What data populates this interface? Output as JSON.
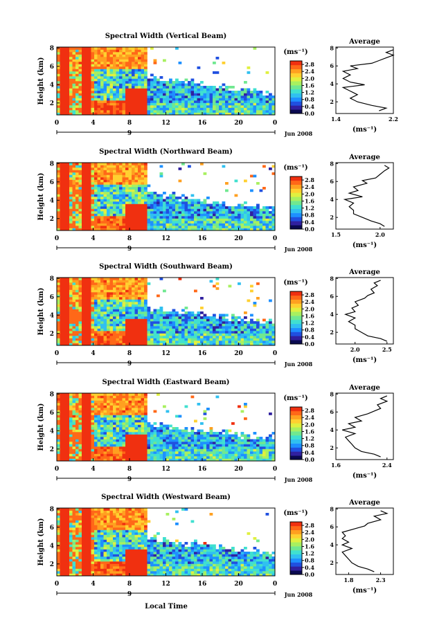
{
  "chart_data": {
    "type": "heatmap",
    "panels": [
      {
        "title": "Spectral Width (Vertical Beam)",
        "avg_xticks": [
          "1.4",
          "2.2"
        ],
        "avg_xlim": [
          1.4,
          2.2
        ],
        "profile": [
          [
            2.0,
            1.0
          ],
          [
            2.1,
            1.3
          ],
          [
            1.9,
            1.6
          ],
          [
            1.7,
            2.0
          ],
          [
            1.6,
            2.4
          ],
          [
            1.7,
            2.8
          ],
          [
            1.6,
            3.2
          ],
          [
            1.5,
            3.6
          ],
          [
            1.8,
            3.9
          ],
          [
            1.6,
            4.2
          ],
          [
            1.5,
            4.6
          ],
          [
            1.6,
            5.0
          ],
          [
            1.5,
            5.4
          ],
          [
            1.7,
            5.7
          ],
          [
            1.6,
            6.0
          ],
          [
            1.9,
            6.3
          ],
          [
            2.0,
            6.6
          ],
          [
            2.1,
            6.9
          ],
          [
            2.2,
            7.2
          ],
          [
            2.1,
            7.5
          ],
          [
            2.2,
            7.8
          ]
        ]
      },
      {
        "title": "Spectral Width (Northward Beam)",
        "avg_xticks": [
          "1.5",
          "2.0"
        ],
        "avg_xlim": [
          1.5,
          2.15
        ],
        "profile": [
          [
            2.05,
            1.0
          ],
          [
            2.0,
            1.3
          ],
          [
            1.9,
            1.6
          ],
          [
            1.8,
            2.0
          ],
          [
            1.7,
            2.4
          ],
          [
            1.7,
            2.8
          ],
          [
            1.65,
            3.2
          ],
          [
            1.7,
            3.6
          ],
          [
            1.6,
            4.0
          ],
          [
            1.8,
            4.3
          ],
          [
            1.65,
            4.7
          ],
          [
            1.75,
            5.0
          ],
          [
            1.7,
            5.4
          ],
          [
            1.85,
            5.8
          ],
          [
            1.8,
            6.1
          ],
          [
            1.95,
            6.4
          ],
          [
            2.0,
            6.8
          ],
          [
            2.05,
            7.2
          ],
          [
            2.1,
            7.5
          ],
          [
            2.05,
            7.8
          ]
        ]
      },
      {
        "title": "Spectral Width (Southward Beam)",
        "avg_xticks": [
          "2.0",
          "2.5"
        ],
        "avg_xlim": [
          1.7,
          2.6
        ],
        "profile": [
          [
            2.5,
            1.0
          ],
          [
            2.4,
            1.3
          ],
          [
            2.2,
            1.6
          ],
          [
            2.1,
            2.0
          ],
          [
            2.0,
            2.4
          ],
          [
            2.0,
            2.8
          ],
          [
            1.9,
            3.2
          ],
          [
            2.0,
            3.6
          ],
          [
            1.85,
            4.0
          ],
          [
            2.0,
            4.3
          ],
          [
            1.95,
            4.7
          ],
          [
            2.05,
            5.0
          ],
          [
            2.0,
            5.4
          ],
          [
            2.15,
            5.8
          ],
          [
            2.2,
            6.1
          ],
          [
            2.3,
            6.4
          ],
          [
            2.25,
            6.8
          ],
          [
            2.35,
            7.2
          ],
          [
            2.3,
            7.5
          ],
          [
            2.4,
            7.8
          ]
        ]
      },
      {
        "title": "Spectral Width (Eastward Beam)",
        "avg_xticks": [
          "1.6",
          "2.4"
        ],
        "avg_xlim": [
          1.6,
          2.5
        ],
        "profile": [
          [
            2.3,
            1.0
          ],
          [
            2.2,
            1.3
          ],
          [
            2.0,
            1.6
          ],
          [
            1.9,
            2.0
          ],
          [
            1.85,
            2.4
          ],
          [
            1.8,
            2.8
          ],
          [
            1.75,
            3.2
          ],
          [
            1.9,
            3.6
          ],
          [
            1.7,
            4.0
          ],
          [
            1.9,
            4.3
          ],
          [
            1.8,
            4.7
          ],
          [
            2.0,
            5.0
          ],
          [
            1.9,
            5.4
          ],
          [
            2.1,
            5.8
          ],
          [
            2.2,
            6.1
          ],
          [
            2.3,
            6.4
          ],
          [
            2.25,
            6.8
          ],
          [
            2.4,
            7.2
          ],
          [
            2.3,
            7.5
          ],
          [
            2.4,
            7.8
          ]
        ]
      },
      {
        "title": "Spectral Width (Westward Beam)",
        "avg_xticks": [
          "1.8",
          "2.3"
        ],
        "avg_xlim": [
          1.6,
          2.5
        ],
        "profile": [
          [
            2.2,
            1.0
          ],
          [
            2.1,
            1.3
          ],
          [
            1.95,
            1.6
          ],
          [
            1.85,
            2.0
          ],
          [
            1.8,
            2.4
          ],
          [
            1.75,
            2.8
          ],
          [
            1.7,
            3.2
          ],
          [
            1.85,
            3.6
          ],
          [
            1.7,
            4.0
          ],
          [
            1.8,
            4.3
          ],
          [
            1.7,
            4.7
          ],
          [
            1.75,
            5.0
          ],
          [
            1.7,
            5.4
          ],
          [
            1.9,
            5.8
          ],
          [
            2.05,
            6.1
          ],
          [
            2.1,
            6.4
          ],
          [
            2.3,
            6.8
          ],
          [
            2.2,
            7.2
          ],
          [
            2.4,
            7.5
          ],
          [
            2.3,
            7.8
          ]
        ]
      }
    ],
    "xlabel": "Local Time",
    "ylabel": "Height (km)",
    "x_ticks": [
      "0",
      "4",
      "8",
      "12",
      "16",
      "20",
      "0"
    ],
    "x_range": [
      0,
      24
    ],
    "y_ticks": [
      "2",
      "4",
      "6",
      "8"
    ],
    "y_range": [
      0.7,
      8.1
    ],
    "date_marker": "9",
    "date_label": "Jun 2008",
    "colorbar": {
      "unit": "(ms⁻¹)",
      "ticks": [
        "0.0",
        "0.4",
        "0.8",
        "1.2",
        "1.6",
        "2.0",
        "2.4",
        "2.8"
      ],
      "range": [
        0.0,
        3.0
      ],
      "colors": [
        "#0a0a50",
        "#3020a0",
        "#2050e0",
        "#1e90ff",
        "#30c0f0",
        "#40e0d0",
        "#70e890",
        "#a8f060",
        "#e0f040",
        "#ffd030",
        "#ffa020",
        "#ff6818",
        "#f03010"
      ]
    },
    "average": {
      "title": "Average",
      "xlabel": "(ms⁻¹)"
    }
  }
}
